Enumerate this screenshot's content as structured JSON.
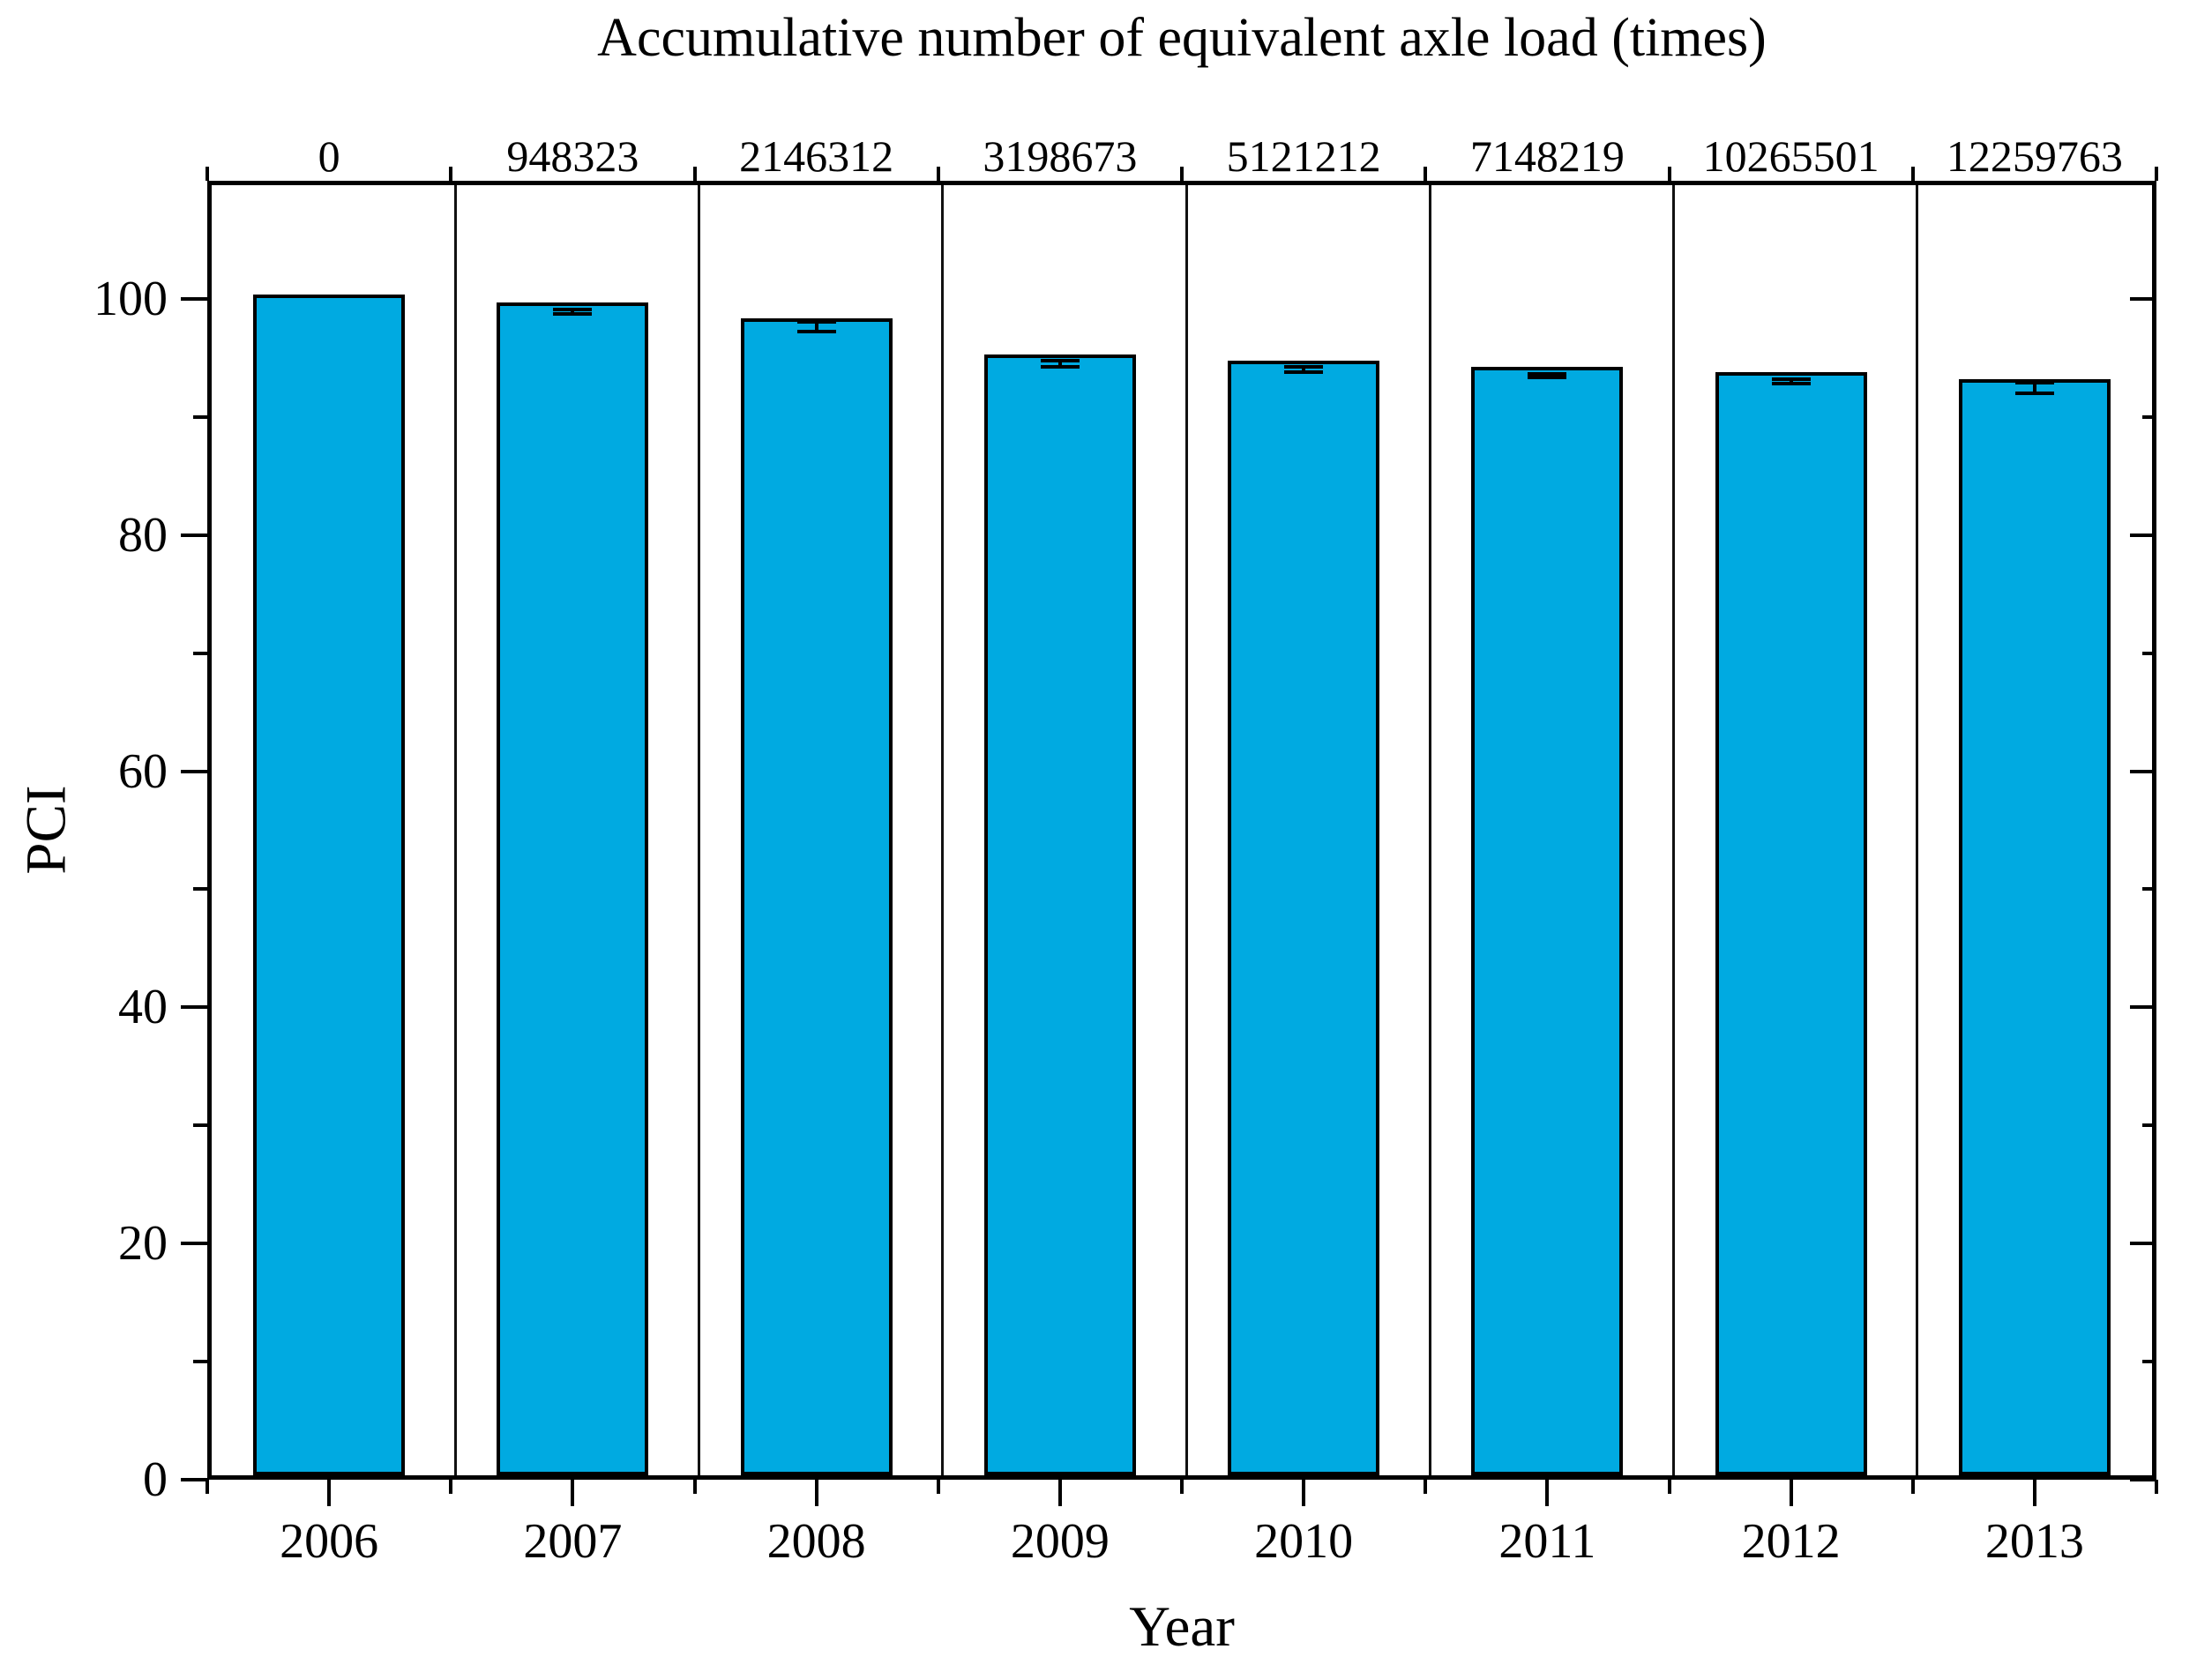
{
  "chart_data": {
    "type": "bar",
    "top_axis_title": "Accumulative number of equivalent axle load (times)",
    "xlabel": "Year",
    "ylabel": "PCI",
    "categories": [
      "2006",
      "2007",
      "2008",
      "2009",
      "2010",
      "2011",
      "2012",
      "2013"
    ],
    "top_axis_labels": [
      "0",
      "948323",
      "2146312",
      "3198673",
      "5121212",
      "7148219",
      "10265501",
      "12259763"
    ],
    "series": [
      {
        "name": "PCI",
        "values": [
          100,
          99.3,
          98.0,
          94.9,
          94.4,
          93.9,
          93.4,
          92.8
        ],
        "errors": [
          0,
          0.2,
          0.4,
          0.25,
          0.2,
          0.15,
          0.2,
          0.45
        ]
      }
    ],
    "ylim": [
      0,
      110
    ],
    "yticks_major": [
      0,
      20,
      40,
      60,
      80,
      100
    ],
    "yticks_minor": [
      10,
      30,
      50,
      70,
      90
    ],
    "bar_color": "#00AAE1",
    "bar_border_color": "#000000",
    "axis_color": "#000000",
    "grid": "vertical-column-separators",
    "legend_position": "none"
  }
}
